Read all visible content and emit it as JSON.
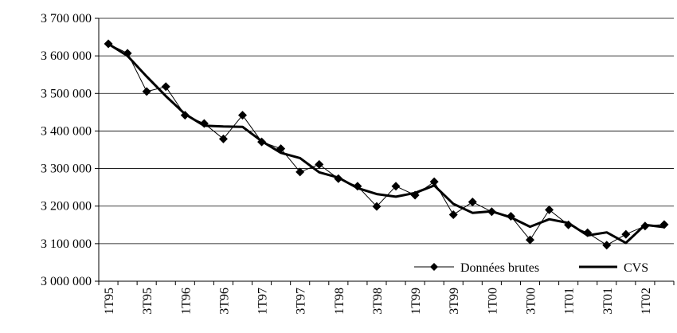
{
  "chart_data": {
    "type": "line",
    "title": "",
    "xlabel": "",
    "ylabel": "",
    "ylim": [
      3000000,
      3700000
    ],
    "y_ticks": [
      "3 000 000",
      "3 100 000",
      "3 200 000",
      "3 300 000",
      "3 400 000",
      "3 500 000",
      "3 600 000",
      "3 700 000"
    ],
    "y_tick_values": [
      3000000,
      3100000,
      3200000,
      3300000,
      3400000,
      3500000,
      3600000,
      3700000
    ],
    "x": [
      "1T95",
      "2T95",
      "3T95",
      "4T95",
      "1T96",
      "2T96",
      "3T96",
      "4T96",
      "1T97",
      "2T97",
      "3T97",
      "4T97",
      "1T98",
      "2T98",
      "3T98",
      "4T98",
      "1T99",
      "2T99",
      "3T99",
      "4T99",
      "1T00",
      "2T00",
      "3T00",
      "4T00",
      "1T01",
      "2T01",
      "3T01",
      "4T01",
      "1T02",
      "2T02"
    ],
    "x_tick_labels": [
      "1T95",
      "3T95",
      "1T96",
      "3T96",
      "1T97",
      "3T97",
      "1T98",
      "3T98",
      "1T99",
      "3T99",
      "1T00",
      "3T00",
      "1T01",
      "3T01",
      "1T02"
    ],
    "gridlines": "horizontal",
    "legend_position": "bottom-right",
    "series": [
      {
        "name": "Données brutes",
        "style": "thin-line-diamond-markers",
        "color": "#000000",
        "values": [
          3632000,
          3607000,
          3505000,
          3518000,
          3442000,
          3420000,
          3379000,
          3442000,
          3371000,
          3353000,
          3291000,
          3311000,
          3273000,
          3253000,
          3199000,
          3253000,
          3229000,
          3265000,
          3177000,
          3211000,
          3185000,
          3173000,
          3110000,
          3190000,
          3150000,
          3129000,
          3096000,
          3125000,
          3147000,
          3151000
        ]
      },
      {
        "name": "CVS",
        "style": "thick-line",
        "color": "#000000",
        "values": [
          3632000,
          3600000,
          3545000,
          3493000,
          3445000,
          3414000,
          3412000,
          3411000,
          3373000,
          3342000,
          3328000,
          3290000,
          3276000,
          3248000,
          3232000,
          3225000,
          3235000,
          3255000,
          3206000,
          3182000,
          3186000,
          3170000,
          3145000,
          3165000,
          3155000,
          3122000,
          3130000,
          3102000,
          3150000,
          3144000
        ]
      }
    ]
  }
}
